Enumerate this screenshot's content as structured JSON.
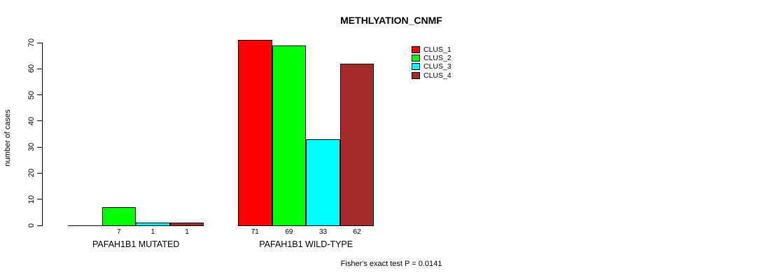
{
  "chart_data": {
    "type": "bar",
    "title": "METHLYATION_CNMF",
    "xlabel": "",
    "ylabel": "number of cases",
    "ylim": [
      0,
      70
    ],
    "yticks": [
      0,
      10,
      20,
      30,
      40,
      50,
      60,
      70
    ],
    "grid": false,
    "legend_position": "top-right",
    "bar_border_color": "#000000",
    "categories": [
      "PAFAH1B1 MUTATED",
      "PAFAH1B1 WILD-TYPE"
    ],
    "series": [
      {
        "name": "CLUS_1",
        "color": "#ff0000",
        "values": [
          0,
          71
        ]
      },
      {
        "name": "CLUS_2",
        "color": "#00ff00",
        "values": [
          7,
          69
        ]
      },
      {
        "name": "CLUS_3",
        "color": "#00ffff",
        "values": [
          1,
          33
        ]
      },
      {
        "name": "CLUS_4",
        "color": "#a52a2a",
        "values": [
          1,
          62
        ]
      }
    ],
    "bar_value_labels": [
      "7",
      "1",
      "1",
      "71",
      "69",
      "33",
      "62"
    ],
    "annotation": "Fisher's exact test P = 0.0141"
  }
}
